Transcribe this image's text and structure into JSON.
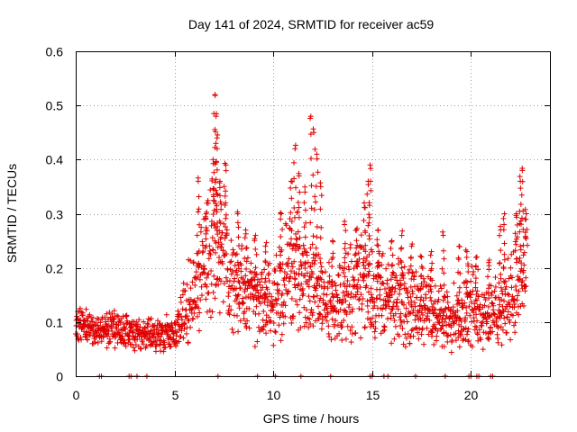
{
  "chart_data": {
    "type": "scatter",
    "title": "Day 141 of 2024, SRMTID for receiver ac59",
    "xlabel": "GPS time / hours",
    "ylabel": "SRMTID / TECUs",
    "xlim": [
      0,
      24
    ],
    "ylim": [
      0,
      0.6
    ],
    "xticks": [
      0,
      5,
      10,
      15,
      20
    ],
    "xtick_labels": [
      "0",
      "5",
      "10",
      "15",
      "20"
    ],
    "yticks": [
      0,
      0.1,
      0.2,
      0.3,
      0.4,
      0.5,
      0.6
    ],
    "ytick_labels": [
      "0",
      "0.1",
      "0.2",
      "0.3",
      "0.4",
      "0.5",
      "0.6"
    ],
    "grid": true,
    "marker": "+",
    "color": "#e00000",
    "series": [
      {
        "name": "SRMTID",
        "profile": [
          [
            0.0,
            0.1
          ],
          [
            0.5,
            0.09
          ],
          [
            1.0,
            0.08
          ],
          [
            1.5,
            0.09
          ],
          [
            2.0,
            0.085
          ],
          [
            2.5,
            0.08
          ],
          [
            3.0,
            0.075
          ],
          [
            3.5,
            0.08
          ],
          [
            4.0,
            0.075
          ],
          [
            4.5,
            0.08
          ],
          [
            5.0,
            0.08
          ],
          [
            5.5,
            0.12
          ],
          [
            6.0,
            0.16
          ],
          [
            6.5,
            0.2
          ],
          [
            7.0,
            0.24
          ],
          [
            7.5,
            0.22
          ],
          [
            8.0,
            0.17
          ],
          [
            8.5,
            0.15
          ],
          [
            9.0,
            0.14
          ],
          [
            9.5,
            0.13
          ],
          [
            10.0,
            0.14
          ],
          [
            10.5,
            0.17
          ],
          [
            11.0,
            0.2
          ],
          [
            11.5,
            0.18
          ],
          [
            12.0,
            0.16
          ],
          [
            12.5,
            0.14
          ],
          [
            13.0,
            0.13
          ],
          [
            13.5,
            0.14
          ],
          [
            14.0,
            0.16
          ],
          [
            14.5,
            0.18
          ],
          [
            15.0,
            0.17
          ],
          [
            15.5,
            0.15
          ],
          [
            16.0,
            0.13
          ],
          [
            16.5,
            0.14
          ],
          [
            17.0,
            0.13
          ],
          [
            17.5,
            0.12
          ],
          [
            18.0,
            0.12
          ],
          [
            18.5,
            0.11
          ],
          [
            19.0,
            0.1
          ],
          [
            19.5,
            0.12
          ],
          [
            20.0,
            0.13
          ],
          [
            20.5,
            0.12
          ],
          [
            21.0,
            0.11
          ],
          [
            21.5,
            0.12
          ],
          [
            22.0,
            0.16
          ],
          [
            22.5,
            0.18
          ],
          [
            22.8,
            0.2
          ]
        ],
        "spikes": [
          [
            6.2,
            0.36
          ],
          [
            6.6,
            0.3
          ],
          [
            6.95,
            0.4
          ],
          [
            7.05,
            0.52
          ],
          [
            7.1,
            0.48
          ],
          [
            7.15,
            0.44
          ],
          [
            7.3,
            0.36
          ],
          [
            7.6,
            0.39
          ],
          [
            8.2,
            0.3
          ],
          [
            8.6,
            0.27
          ],
          [
            9.1,
            0.26
          ],
          [
            9.6,
            0.24
          ],
          [
            10.4,
            0.3
          ],
          [
            10.9,
            0.36
          ],
          [
            11.1,
            0.42
          ],
          [
            11.3,
            0.37
          ],
          [
            11.6,
            0.34
          ],
          [
            11.9,
            0.48
          ],
          [
            12.05,
            0.45
          ],
          [
            12.2,
            0.41
          ],
          [
            12.4,
            0.35
          ],
          [
            13.0,
            0.25
          ],
          [
            13.6,
            0.28
          ],
          [
            14.2,
            0.27
          ],
          [
            14.6,
            0.32
          ],
          [
            14.8,
            0.36
          ],
          [
            14.9,
            0.39
          ],
          [
            15.3,
            0.27
          ],
          [
            16.0,
            0.25
          ],
          [
            16.5,
            0.26
          ],
          [
            17.0,
            0.24
          ],
          [
            17.5,
            0.22
          ],
          [
            18.0,
            0.23
          ],
          [
            18.6,
            0.26
          ],
          [
            19.4,
            0.24
          ],
          [
            19.8,
            0.23
          ],
          [
            20.3,
            0.22
          ],
          [
            20.9,
            0.21
          ],
          [
            21.5,
            0.27
          ],
          [
            21.7,
            0.3
          ],
          [
            22.3,
            0.3
          ],
          [
            22.5,
            0.36
          ],
          [
            22.6,
            0.38
          ],
          [
            22.8,
            0.3
          ]
        ],
        "zero_hours": [
          1.2,
          1.3,
          2.7,
          2.8,
          3.1,
          3.6,
          7.2,
          9.2,
          10.1,
          11.4,
          12.9,
          14.9,
          15.0,
          15.6,
          15.8,
          17.2,
          18.7,
          19.9,
          20.0,
          20.3,
          20.4,
          21.0,
          21.1
        ]
      }
    ]
  }
}
